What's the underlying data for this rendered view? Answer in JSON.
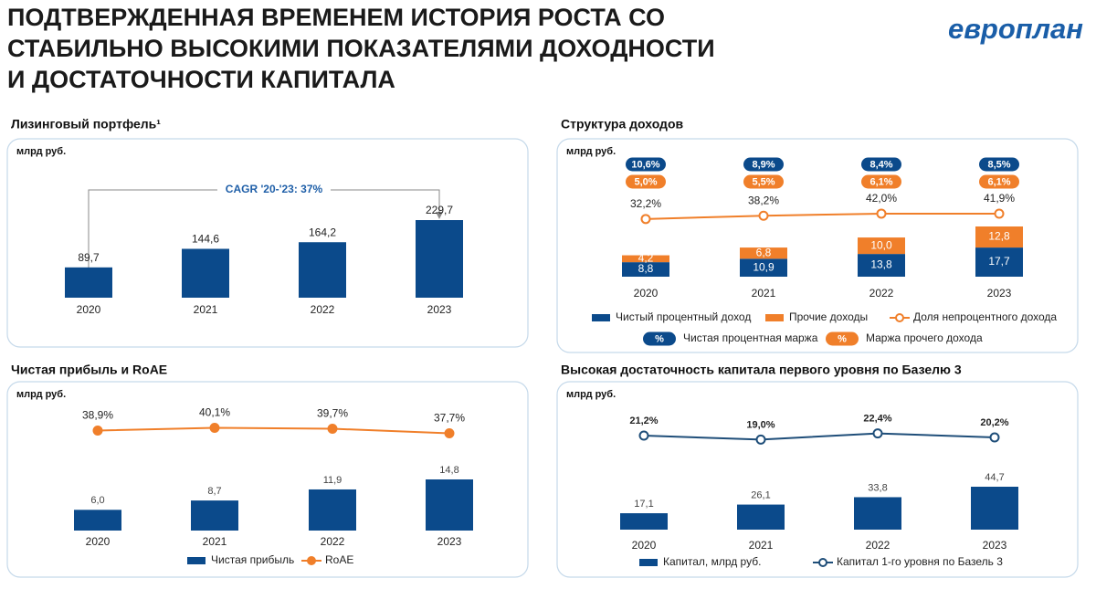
{
  "header": {
    "title": [
      "ПОДТВЕРЖДЕННАЯ ВРЕМЕНЕМ ИСТОРИЯ РОСТА СО",
      "СТАБИЛЬНО ВЫСОКИМИ ПОКАЗАТЕЛЯМИ ДОХОДНОСТИ",
      "И ДОСТАТОЧНОСТИ КАПИТАЛА"
    ],
    "logo": "европлан"
  },
  "chart_data": [
    {
      "type": "bar",
      "title": "Лизинговый портфель¹",
      "unit_label": "млрд руб.",
      "annotation": "CAGR '20-'23: 37%",
      "categories": [
        "2020",
        "2021",
        "2022",
        "2023"
      ],
      "values": [
        89.7,
        144.6,
        164.2,
        229.7
      ],
      "value_labels": [
        "89,7",
        "144,6",
        "164,2",
        "229,7"
      ],
      "color": "#0b4a8b"
    },
    {
      "type": "stacked_bar",
      "title": "Структура доходов",
      "unit_label": "млрд руб.",
      "legend_badge_label": "%",
      "categories": [
        "2020",
        "2021",
        "2022",
        "2023"
      ],
      "series": [
        {
          "name": "Чистый процентный доход",
          "type": "bar",
          "color": "#0b4a8b",
          "values": [
            8.8,
            10.9,
            13.8,
            17.7
          ],
          "value_labels": [
            "8,8",
            "10,9",
            "13,8",
            "17,7"
          ]
        },
        {
          "name": "Прочие доходы",
          "type": "bar",
          "color": "#f07f2a",
          "values": [
            4.2,
            6.8,
            10.0,
            12.8
          ],
          "value_labels": [
            "4,2",
            "6,8",
            "10,0",
            "12,8"
          ]
        },
        {
          "name": "Доля непроцентного дохода",
          "type": "line",
          "marker": "hollow",
          "color": "#f07f2a",
          "values": [
            32.2,
            38.2,
            42.0,
            41.9
          ],
          "value_labels": [
            "32,2%",
            "38,2%",
            "42,0%",
            "41,9%"
          ]
        },
        {
          "name": "Чистая процентная маржа",
          "type": "badge",
          "color": "#0b4a8b",
          "values": [
            10.6,
            8.9,
            8.4,
            8.5
          ],
          "value_labels": [
            "10,6%",
            "8,9%",
            "8,4%",
            "8,5%"
          ]
        },
        {
          "name": "Маржа прочего дохода",
          "type": "badge",
          "color": "#f07f2a",
          "values": [
            5.0,
            5.5,
            6.1,
            6.1
          ],
          "value_labels": [
            "5,0%",
            "5,5%",
            "6,1%",
            "6,1%"
          ]
        }
      ]
    },
    {
      "type": "bar_line",
      "title": "Чистая прибыль и RoAE",
      "unit_label": "млрд руб.",
      "categories": [
        "2020",
        "2021",
        "2022",
        "2023"
      ],
      "series": [
        {
          "name": "Чистая прибыль",
          "type": "bar",
          "color": "#0b4a8b",
          "values": [
            6.0,
            8.7,
            11.9,
            14.8
          ],
          "value_labels": [
            "6,0",
            "8,7",
            "11,9",
            "14,8"
          ]
        },
        {
          "name": "RoAE",
          "type": "line",
          "marker": "filled",
          "color": "#f07f2a",
          "values": [
            38.9,
            40.1,
            39.7,
            37.7
          ],
          "value_labels": [
            "38,9%",
            "40,1%",
            "39,7%",
            "37,7%"
          ]
        }
      ]
    },
    {
      "type": "bar_line",
      "title": "Высокая достаточность капитала первого уровня по Базелю 3",
      "unit_label": "млрд руб.",
      "categories": [
        "2020",
        "2021",
        "2022",
        "2023"
      ],
      "series": [
        {
          "name": "Капитал, млрд руб.",
          "type": "bar",
          "color": "#0b4a8b",
          "values": [
            17.1,
            26.1,
            33.8,
            44.7
          ],
          "value_labels": [
            "17,1",
            "26,1",
            "33,8",
            "44,7"
          ]
        },
        {
          "name": "Капитал 1-го уровня по Базель 3",
          "type": "line",
          "marker": "hollow",
          "color": "#1f4e79",
          "values": [
            21.2,
            19.0,
            22.4,
            20.2
          ],
          "value_labels": [
            "21,2%",
            "19,0%",
            "22,4%",
            "20,2%"
          ]
        }
      ]
    }
  ]
}
